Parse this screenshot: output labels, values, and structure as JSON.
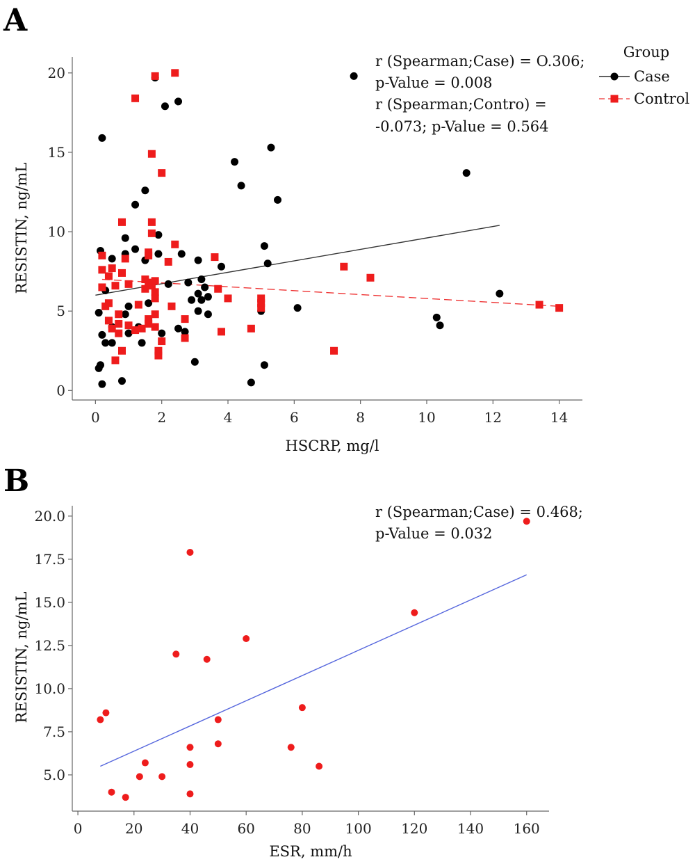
{
  "chart_data": [
    {
      "panel": "A",
      "type": "scatter",
      "xlabel": "HSCRP, mg/l",
      "ylabel": "RESISTIN, ng/mL",
      "xlim": [
        -0.7,
        14.7
      ],
      "ylim": [
        -0.6,
        21.0
      ],
      "xticks": [
        0,
        2,
        4,
        6,
        8,
        10,
        12,
        14
      ],
      "yticks": [
        0,
        5,
        10,
        15,
        20
      ],
      "legend": {
        "title": "Group",
        "placement": "top-right"
      },
      "annotations": [
        "r (Spearman;Case) = O.306;",
        "p-Value = 0.008",
        "r (Spearman;Contro) =",
        "-0.073; p-Value = 0.564"
      ],
      "series": [
        {
          "name": "Case",
          "color": "#000000",
          "marker": "circle",
          "fit_line": {
            "x": [
              0.0,
              12.2
            ],
            "y": [
              6.0,
              10.4
            ],
            "dash": "solid",
            "color": "#333333"
          },
          "points": [
            [
              0.1,
              1.4
            ],
            [
              0.15,
              1.6
            ],
            [
              0.2,
              0.4
            ],
            [
              0.1,
              4.9
            ],
            [
              0.2,
              3.5
            ],
            [
              0.3,
              3.0
            ],
            [
              0.15,
              8.8
            ],
            [
              0.2,
              15.9
            ],
            [
              0.3,
              6.3
            ],
            [
              0.5,
              8.3
            ],
            [
              0.5,
              3.0
            ],
            [
              0.5,
              4.0
            ],
            [
              0.8,
              0.6
            ],
            [
              0.9,
              4.8
            ],
            [
              0.9,
              8.6
            ],
            [
              0.9,
              9.6
            ],
            [
              1.0,
              5.3
            ],
            [
              1.0,
              3.6
            ],
            [
              1.2,
              11.7
            ],
            [
              1.2,
              8.9
            ],
            [
              1.3,
              4.0
            ],
            [
              1.4,
              3.0
            ],
            [
              1.5,
              12.6
            ],
            [
              1.5,
              8.2
            ],
            [
              1.6,
              5.5
            ],
            [
              1.8,
              19.7
            ],
            [
              1.9,
              9.8
            ],
            [
              1.9,
              8.6
            ],
            [
              2.0,
              3.6
            ],
            [
              2.1,
              17.9
            ],
            [
              2.2,
              6.7
            ],
            [
              2.5,
              18.2
            ],
            [
              2.5,
              3.9
            ],
            [
              2.6,
              8.6
            ],
            [
              2.7,
              3.7
            ],
            [
              2.8,
              6.8
            ],
            [
              2.9,
              5.7
            ],
            [
              3.0,
              1.8
            ],
            [
              3.1,
              8.2
            ],
            [
              3.1,
              6.1
            ],
            [
              3.2,
              7.0
            ],
            [
              3.2,
              5.7
            ],
            [
              3.3,
              6.5
            ],
            [
              3.4,
              5.9
            ],
            [
              3.4,
              4.8
            ],
            [
              3.1,
              5.0
            ],
            [
              3.8,
              7.8
            ],
            [
              4.2,
              14.4
            ],
            [
              4.4,
              12.9
            ],
            [
              4.7,
              0.5
            ],
            [
              5.0,
              5.0
            ],
            [
              5.1,
              9.1
            ],
            [
              5.1,
              1.6
            ],
            [
              5.2,
              8.0
            ],
            [
              5.3,
              15.3
            ],
            [
              5.5,
              12.0
            ],
            [
              6.1,
              5.2
            ],
            [
              7.8,
              19.8
            ],
            [
              10.3,
              4.6
            ],
            [
              10.4,
              4.1
            ],
            [
              11.2,
              13.7
            ],
            [
              12.2,
              6.1
            ]
          ]
        },
        {
          "name": "Control",
          "color": "#ee1c1c",
          "marker": "square",
          "fit_line": {
            "x": [
              0.2,
              14.0
            ],
            "y": [
              7.0,
              5.3
            ],
            "dash": "dashed",
            "color": "#ee3333"
          },
          "points": [
            [
              0.2,
              6.5
            ],
            [
              0.2,
              7.6
            ],
            [
              0.3,
              5.3
            ],
            [
              0.2,
              8.5
            ],
            [
              0.4,
              4.4
            ],
            [
              0.4,
              5.5
            ],
            [
              0.4,
              7.2
            ],
            [
              0.5,
              3.9
            ],
            [
              0.5,
              7.7
            ],
            [
              0.6,
              6.6
            ],
            [
              0.6,
              1.9
            ],
            [
              0.7,
              4.8
            ],
            [
              0.7,
              4.2
            ],
            [
              0.7,
              3.6
            ],
            [
              0.8,
              7.4
            ],
            [
              0.8,
              10.6
            ],
            [
              0.8,
              2.5
            ],
            [
              0.9,
              8.3
            ],
            [
              1.0,
              6.7
            ],
            [
              1.0,
              4.1
            ],
            [
              1.2,
              18.4
            ],
            [
              1.2,
              3.8
            ],
            [
              1.3,
              5.4
            ],
            [
              1.4,
              3.9
            ],
            [
              1.5,
              7.0
            ],
            [
              1.5,
              6.4
            ],
            [
              1.6,
              8.5
            ],
            [
              1.6,
              8.7
            ],
            [
              1.6,
              4.2
            ],
            [
              1.6,
              4.5
            ],
            [
              1.6,
              6.8
            ],
            [
              1.7,
              14.9
            ],
            [
              1.7,
              10.6
            ],
            [
              1.7,
              9.9
            ],
            [
              1.7,
              6.6
            ],
            [
              1.8,
              5.8
            ],
            [
              1.8,
              4.0
            ],
            [
              1.8,
              4.8
            ],
            [
              1.8,
              6.2
            ],
            [
              1.8,
              6.9
            ],
            [
              1.9,
              2.2
            ],
            [
              1.9,
              2.5
            ],
            [
              1.8,
              19.8
            ],
            [
              2.0,
              13.7
            ],
            [
              2.0,
              3.1
            ],
            [
              2.2,
              8.1
            ],
            [
              2.3,
              5.3
            ],
            [
              2.4,
              9.2
            ],
            [
              2.4,
              20.0
            ],
            [
              2.7,
              4.5
            ],
            [
              2.7,
              3.3
            ],
            [
              3.6,
              8.4
            ],
            [
              3.7,
              6.4
            ],
            [
              3.8,
              3.7
            ],
            [
              4.0,
              5.8
            ],
            [
              4.7,
              3.9
            ],
            [
              5.0,
              5.8
            ],
            [
              5.0,
              5.5
            ],
            [
              5.0,
              5.2
            ],
            [
              7.2,
              2.5
            ],
            [
              7.5,
              7.8
            ],
            [
              8.3,
              7.1
            ],
            [
              13.4,
              5.4
            ],
            [
              14.0,
              5.2
            ]
          ]
        }
      ]
    },
    {
      "panel": "B",
      "type": "scatter",
      "xlabel": "ESR, mm/h",
      "ylabel": "RESISTIN, ng/mL",
      "xlim": [
        -2,
        168
      ],
      "ylim": [
        2.9,
        20.6
      ],
      "xticks": [
        0,
        20,
        40,
        60,
        80,
        100,
        120,
        140,
        160
      ],
      "yticks": [
        "5.0",
        "7.5",
        "10.0",
        "12.5",
        "15.0",
        "17.5",
        "20.0"
      ],
      "annotations": [
        "r (Spearman;Case) = 0.468;",
        "p-Value = 0.032"
      ],
      "series": [
        {
          "color": "#ee1c1c",
          "marker": "circle",
          "fit_line": {
            "x": [
              8,
              160
            ],
            "y": [
              5.5,
              16.6
            ],
            "dash": "solid",
            "color": "#5566dd"
          },
          "points": [
            [
              8,
              8.2
            ],
            [
              10,
              8.6
            ],
            [
              12,
              4.0
            ],
            [
              17,
              3.7
            ],
            [
              22,
              4.9
            ],
            [
              24,
              5.7
            ],
            [
              30,
              4.9
            ],
            [
              35,
              12.0
            ],
            [
              40,
              17.9
            ],
            [
              40,
              6.6
            ],
            [
              40,
              5.6
            ],
            [
              40,
              3.9
            ],
            [
              46,
              11.7
            ],
            [
              50,
              8.2
            ],
            [
              50,
              6.8
            ],
            [
              60,
              12.9
            ],
            [
              76,
              6.6
            ],
            [
              80,
              8.9
            ],
            [
              86,
              5.5
            ],
            [
              120,
              14.4
            ],
            [
              160,
              19.7
            ]
          ]
        }
      ]
    }
  ]
}
